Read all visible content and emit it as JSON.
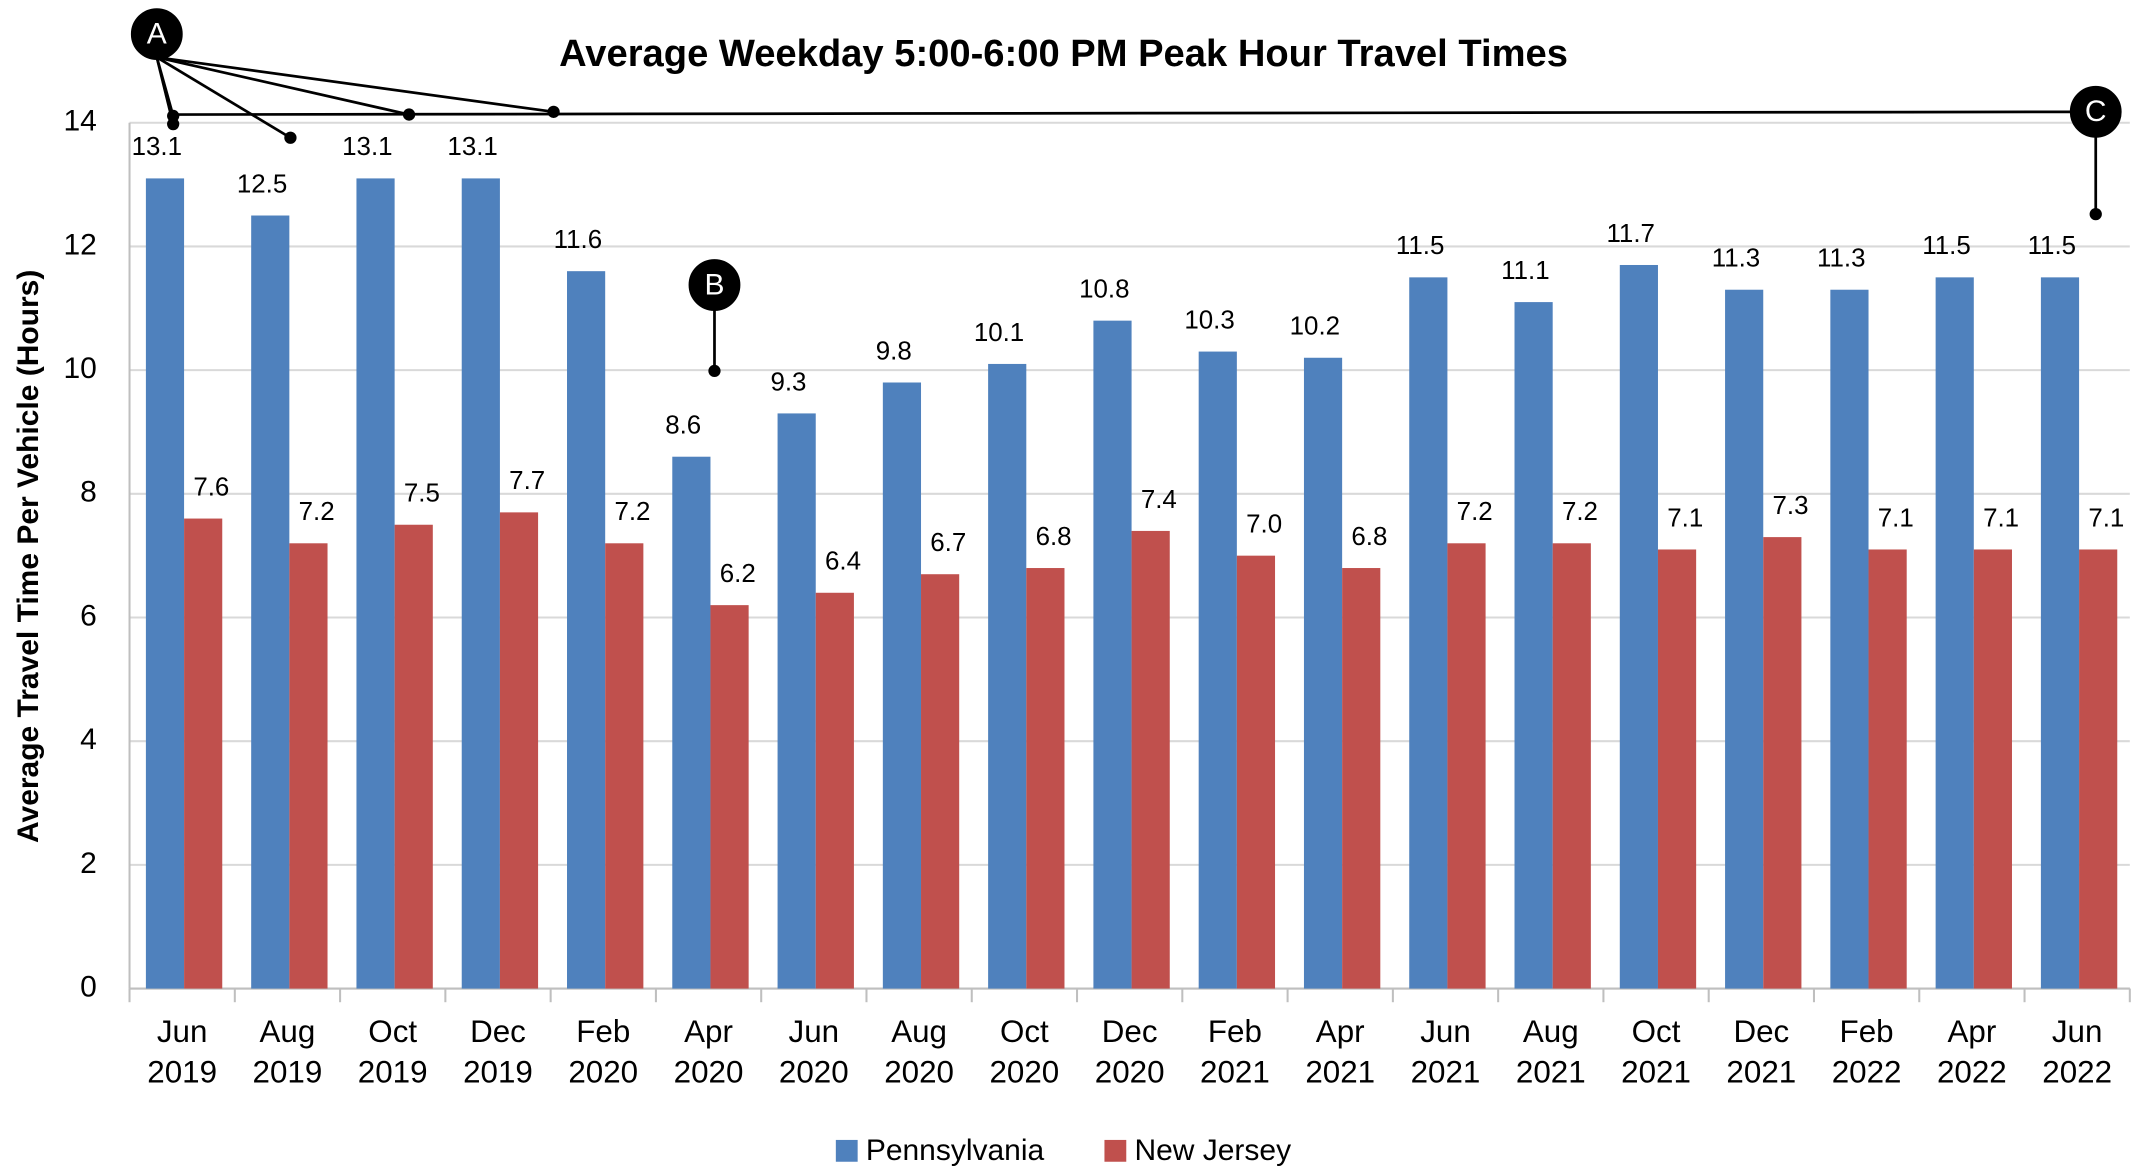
{
  "chart_data": {
    "type": "bar",
    "title": "Average Weekday 5:00-6:00 PM Peak Hour Travel Times",
    "y_label": "Average Travel Time Per Vehicle (Hours)",
    "categories": [
      "Jun 2019",
      "Aug 2019",
      "Oct 2019",
      "Dec 2019",
      "Feb 2020",
      "Apr 2020",
      "Jun 2020",
      "Aug 2020",
      "Oct 2020",
      "Dec 2020",
      "Feb 2021",
      "Apr 2021",
      "Jun 2021",
      "Aug 2021",
      "Oct 2021",
      "Dec 2021",
      "Feb 2022",
      "Apr 2022",
      "Jun 2022"
    ],
    "series": [
      {
        "name": "Pennsylvania",
        "color": "#4f81bd",
        "values": [
          13.1,
          12.5,
          13.1,
          13.1,
          11.6,
          8.6,
          9.3,
          9.8,
          10.1,
          10.8,
          10.3,
          10.2,
          11.5,
          11.1,
          11.7,
          11.3,
          11.3,
          11.5,
          11.5
        ]
      },
      {
        "name": "New Jersey",
        "color": "#c0504d",
        "values": [
          7.6,
          7.2,
          7.5,
          7.7,
          7.2,
          6.2,
          6.4,
          6.7,
          6.8,
          7.4,
          7.0,
          6.8,
          7.2,
          7.2,
          7.1,
          7.3,
          7.1,
          7.1,
          7.1
        ],
        "value_labels": [
          "7.6",
          "7.2",
          "7.5",
          "7.7",
          "7.2",
          "6.2",
          "6.4",
          "6.7",
          "6.8",
          "7.4",
          "7.0",
          "6.8",
          "7.2",
          "7.2",
          "7.1",
          "7.3",
          "7.1",
          "7.1",
          "7.1"
        ]
      }
    ],
    "ylim": [
      0,
      14
    ],
    "yticks": [
      0,
      2,
      4,
      6,
      8,
      10,
      12,
      14
    ],
    "grid": true,
    "legend": "bottom",
    "annotations": [
      "A",
      "B",
      "C"
    ]
  }
}
